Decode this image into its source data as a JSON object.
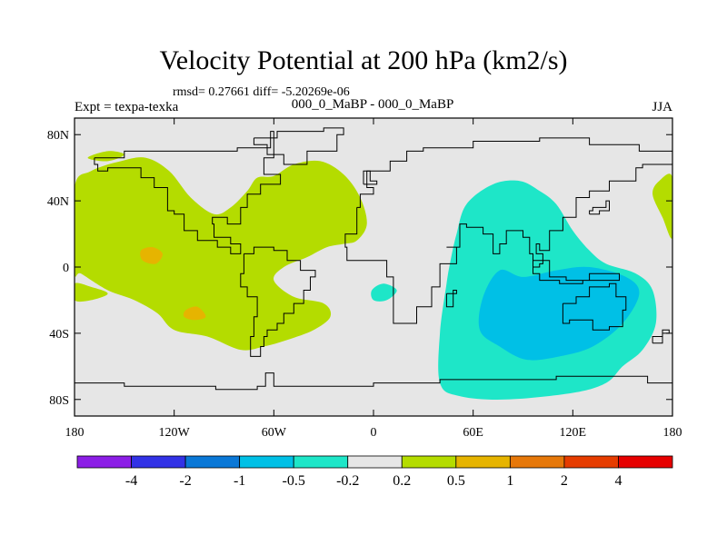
{
  "chart_data": {
    "type": "heatmap",
    "title": "Velocity Potential at 200 hPa (km2/s)",
    "stats": "rmsd= 0.27661 diff= -5.20269e-06",
    "left_label": "Expt = texpa-texka",
    "center_label": "000_0_MaBP - 000_0_MaBP",
    "season": "JJA",
    "x_range": [
      -180,
      180
    ],
    "y_range": [
      -90,
      90
    ],
    "x_ticks": [
      {
        "value": -180,
        "label": "180"
      },
      {
        "value": -120,
        "label": "120W"
      },
      {
        "value": -60,
        "label": "60W"
      },
      {
        "value": 0,
        "label": "0"
      },
      {
        "value": 60,
        "label": "60E"
      },
      {
        "value": 120,
        "label": "120E"
      },
      {
        "value": 180,
        "label": "180"
      }
    ],
    "y_ticks": [
      {
        "value": 80,
        "label": "80N"
      },
      {
        "value": 40,
        "label": "40N"
      },
      {
        "value": 0,
        "label": "0"
      },
      {
        "value": -40,
        "label": "40S"
      },
      {
        "value": -80,
        "label": "80S"
      }
    ],
    "colorbar": {
      "labels": [
        "-4",
        "-2",
        "-1",
        "-0.5",
        "-0.2",
        "0.2",
        "0.5",
        "1",
        "2",
        "4"
      ],
      "colors": [
        "#8c1ee6",
        "#3232e6",
        "#0a78d7",
        "#00c0e6",
        "#1ee6c8",
        "#e6e6e6",
        "#b4dc00",
        "#e6b400",
        "#e6780a",
        "#e63c00",
        "#e60000"
      ]
    },
    "regions": [
      {
        "name": "positive-region-west-hemisphere",
        "level": "0.2 to 0.5",
        "color": "#b4dc00",
        "lonlat": [
          [
            -180,
            48
          ],
          [
            -170,
            58
          ],
          [
            -152,
            64
          ],
          [
            -137,
            66
          ],
          [
            -123,
            58
          ],
          [
            -110,
            42
          ],
          [
            -96,
            32
          ],
          [
            -86,
            36
          ],
          [
            -76,
            46
          ],
          [
            -70,
            54
          ],
          [
            -60,
            55
          ],
          [
            -48,
            62
          ],
          [
            -32,
            64
          ],
          [
            -18,
            56
          ],
          [
            -8,
            42
          ],
          [
            -4,
            26
          ],
          [
            -10,
            16
          ],
          [
            -18,
            14
          ],
          [
            -28,
            12
          ],
          [
            -40,
            6
          ],
          [
            -54,
            0
          ],
          [
            -60,
            -8
          ],
          [
            -48,
            -18
          ],
          [
            -30,
            -22
          ],
          [
            -26,
            -30
          ],
          [
            -36,
            -38
          ],
          [
            -52,
            -44
          ],
          [
            -66,
            -48
          ],
          [
            -80,
            -50
          ],
          [
            -100,
            -42
          ],
          [
            -120,
            -38
          ],
          [
            -130,
            -28
          ],
          [
            -144,
            -20
          ],
          [
            -160,
            -14
          ],
          [
            -176,
            -4
          ],
          [
            -180,
            -2
          ]
        ]
      },
      {
        "name": "positive-region-south-pacific-lobe",
        "level": "0.2 to 0.5",
        "color": "#b4dc00",
        "lonlat": [
          [
            -180,
            -10
          ],
          [
            -170,
            -12
          ],
          [
            -160,
            -16
          ],
          [
            -170,
            -20
          ],
          [
            -180,
            -20
          ]
        ]
      },
      {
        "name": "positive-region-north-pacific-patch",
        "level": "0.2 to 0.5",
        "color": "#b4dc00",
        "lonlat": [
          [
            -172,
            66
          ],
          [
            -160,
            70
          ],
          [
            -150,
            68
          ],
          [
            -160,
            64
          ]
        ]
      },
      {
        "name": "positive-region-east-edge",
        "level": "0.2 to 0.5",
        "color": "#b4dc00",
        "lonlat": [
          [
            180,
            54
          ],
          [
            172,
            52
          ],
          [
            168,
            44
          ],
          [
            174,
            30
          ],
          [
            180,
            18
          ]
        ]
      },
      {
        "name": "moderate-positive-patch-north",
        "level": "0.5 to 1",
        "color": "#e6b400",
        "lonlat": [
          [
            -140,
            10
          ],
          [
            -133,
            12
          ],
          [
            -127,
            8
          ],
          [
            -131,
            2
          ],
          [
            -139,
            4
          ]
        ]
      },
      {
        "name": "moderate-positive-patch-south",
        "level": "0.5 to 1",
        "color": "#e6b400",
        "lonlat": [
          [
            -113,
            -26
          ],
          [
            -106,
            -24
          ],
          [
            -101,
            -30
          ],
          [
            -108,
            -32
          ],
          [
            -114,
            -30
          ]
        ]
      },
      {
        "name": "negative-region-indian-ocean",
        "level": "-0.5 to -0.2",
        "color": "#1ee6c8",
        "lonlat": [
          [
            50,
            20
          ],
          [
            56,
            38
          ],
          [
            72,
            50
          ],
          [
            88,
            52
          ],
          [
            100,
            46
          ],
          [
            110,
            38
          ],
          [
            120,
            22
          ],
          [
            130,
            10
          ],
          [
            140,
            2
          ],
          [
            158,
            -4
          ],
          [
            168,
            -14
          ],
          [
            170,
            -34
          ],
          [
            162,
            -50
          ],
          [
            150,
            -60
          ],
          [
            140,
            -70
          ],
          [
            120,
            -76
          ],
          [
            80,
            -80
          ],
          [
            52,
            -78
          ],
          [
            40,
            -70
          ],
          [
            40,
            -40
          ],
          [
            44,
            -10
          ],
          [
            46,
            2
          ]
        ]
      },
      {
        "name": "negative-region-atlantic-blob",
        "level": "-0.5 to -0.2",
        "color": "#1ee6c8",
        "lonlat": [
          [
            -1,
            -14
          ],
          [
            6,
            -10
          ],
          [
            14,
            -14
          ],
          [
            8,
            -20
          ],
          [
            0,
            -20
          ]
        ]
      },
      {
        "name": "negative-region-indian-ocean-core",
        "level": "-1 to -0.5",
        "color": "#00c0e6",
        "lonlat": [
          [
            76,
            -2
          ],
          [
            90,
            -6
          ],
          [
            110,
            -2
          ],
          [
            130,
            0
          ],
          [
            152,
            -6
          ],
          [
            160,
            -16
          ],
          [
            150,
            -34
          ],
          [
            132,
            -48
          ],
          [
            112,
            -54
          ],
          [
            92,
            -56
          ],
          [
            76,
            -48
          ],
          [
            64,
            -38
          ],
          [
            66,
            -18
          ]
        ]
      }
    ],
    "coastlines": [
      {
        "name": "antarctica-coastline",
        "lonlat": [
          [
            -180,
            -70
          ],
          [
            -150,
            -72
          ],
          [
            -120,
            -72
          ],
          [
            -95,
            -74
          ],
          [
            -70,
            -72
          ],
          [
            -65,
            -64
          ],
          [
            -60,
            -72
          ],
          [
            -30,
            -72
          ],
          [
            0,
            -70
          ],
          [
            40,
            -68
          ],
          [
            80,
            -68
          ],
          [
            110,
            -66
          ],
          [
            140,
            -66
          ],
          [
            165,
            -70
          ],
          [
            180,
            -72
          ]
        ]
      },
      {
        "name": "north-america-coastline",
        "lonlat": [
          [
            -168,
            66
          ],
          [
            -150,
            70
          ],
          [
            -128,
            70
          ],
          [
            -100,
            70
          ],
          [
            -82,
            72
          ],
          [
            -62,
            82
          ],
          [
            -60,
            66
          ],
          [
            -66,
            56
          ],
          [
            -56,
            50
          ],
          [
            -68,
            44
          ],
          [
            -76,
            36
          ],
          [
            -80,
            26
          ],
          [
            -88,
            30
          ],
          [
            -97,
            26
          ],
          [
            -96,
            18
          ],
          [
            -86,
            14
          ],
          [
            -80,
            8
          ],
          [
            -86,
            12
          ],
          [
            -94,
            16
          ],
          [
            -106,
            22
          ],
          [
            -114,
            32
          ],
          [
            -120,
            34
          ],
          [
            -124,
            40
          ],
          [
            -124,
            48
          ],
          [
            -132,
            54
          ],
          [
            -140,
            60
          ],
          [
            -150,
            60
          ],
          [
            -160,
            58
          ],
          [
            -166,
            62
          ],
          [
            -168,
            66
          ]
        ]
      },
      {
        "name": "greenland-coastline",
        "lonlat": [
          [
            -72,
            78
          ],
          [
            -58,
            82
          ],
          [
            -30,
            84
          ],
          [
            -18,
            80
          ],
          [
            -22,
            70
          ],
          [
            -40,
            62
          ],
          [
            -48,
            62
          ],
          [
            -54,
            68
          ],
          [
            -64,
            74
          ],
          [
            -72,
            78
          ]
        ]
      },
      {
        "name": "south-america-coastline",
        "lonlat": [
          [
            -78,
            8
          ],
          [
            -72,
            12
          ],
          [
            -60,
            10
          ],
          [
            -52,
            4
          ],
          [
            -44,
            -2
          ],
          [
            -35,
            -6
          ],
          [
            -38,
            -14
          ],
          [
            -42,
            -22
          ],
          [
            -48,
            -28
          ],
          [
            -54,
            -34
          ],
          [
            -58,
            -38
          ],
          [
            -64,
            -42
          ],
          [
            -66,
            -48
          ],
          [
            -68,
            -54
          ],
          [
            -74,
            -52
          ],
          [
            -74,
            -42
          ],
          [
            -72,
            -30
          ],
          [
            -70,
            -18
          ],
          [
            -76,
            -12
          ],
          [
            -80,
            -4
          ],
          [
            -78,
            8
          ]
        ]
      },
      {
        "name": "eurasia-africa-coastline",
        "lonlat": [
          [
            -10,
            36
          ],
          [
            -8,
            44
          ],
          [
            0,
            48
          ],
          [
            -4,
            58
          ],
          [
            8,
            58
          ],
          [
            10,
            64
          ],
          [
            20,
            70
          ],
          [
            30,
            72
          ],
          [
            60,
            76
          ],
          [
            80,
            76
          ],
          [
            100,
            78
          ],
          [
            130,
            74
          ],
          [
            160,
            70
          ],
          [
            180,
            70
          ],
          [
            180,
            62
          ],
          [
            162,
            60
          ],
          [
            158,
            52
          ],
          [
            142,
            52
          ],
          [
            142,
            46
          ],
          [
            130,
            42
          ],
          [
            122,
            38
          ],
          [
            122,
            30
          ],
          [
            114,
            22
          ],
          [
            106,
            10
          ],
          [
            100,
            14
          ],
          [
            98,
            8
          ],
          [
            102,
            2
          ],
          [
            100,
            0
          ],
          [
            96,
            8
          ],
          [
            94,
            18
          ],
          [
            90,
            22
          ],
          [
            80,
            14
          ],
          [
            76,
            8
          ],
          [
            72,
            20
          ],
          [
            66,
            24
          ],
          [
            56,
            26
          ],
          [
            52,
            12
          ],
          [
            44,
            12
          ],
          [
            50,
            2
          ],
          [
            40,
            -12
          ],
          [
            35,
            -24
          ],
          [
            26,
            -34
          ],
          [
            18,
            -34
          ],
          [
            12,
            -18
          ],
          [
            12,
            -6
          ],
          [
            8,
            4
          ],
          [
            -6,
            4
          ],
          [
            -16,
            12
          ],
          [
            -17,
            20
          ],
          [
            -10,
            30
          ],
          [
            -10,
            36
          ]
        ]
      },
      {
        "name": "australia-coastline",
        "lonlat": [
          [
            114,
            -22
          ],
          [
            122,
            -18
          ],
          [
            130,
            -12
          ],
          [
            136,
            -12
          ],
          [
            142,
            -10
          ],
          [
            146,
            -18
          ],
          [
            152,
            -26
          ],
          [
            150,
            -36
          ],
          [
            142,
            -38
          ],
          [
            132,
            -32
          ],
          [
            118,
            -34
          ],
          [
            114,
            -26
          ],
          [
            114,
            -22
          ]
        ]
      },
      {
        "name": "madagascar-coastline",
        "lonlat": [
          [
            44,
            -16
          ],
          [
            50,
            -14
          ],
          [
            48,
            -24
          ],
          [
            44,
            -24
          ],
          [
            44,
            -16
          ]
        ]
      },
      {
        "name": "indonesia-coastline",
        "lonlat": [
          [
            96,
            4
          ],
          [
            106,
            -6
          ],
          [
            116,
            -8
          ],
          [
            124,
            -8
          ],
          [
            130,
            -4
          ],
          [
            140,
            -4
          ],
          [
            148,
            -8
          ],
          [
            140,
            -8
          ],
          [
            126,
            -10
          ],
          [
            112,
            -8
          ],
          [
            100,
            -4
          ],
          [
            96,
            4
          ]
        ]
      },
      {
        "name": "new-zealand-coastline",
        "lonlat": [
          [
            168,
            -46
          ],
          [
            174,
            -40
          ],
          [
            178,
            -38
          ],
          [
            174,
            -42
          ],
          [
            168,
            -46
          ]
        ]
      },
      {
        "name": "uk-coastline",
        "lonlat": [
          [
            -6,
            50
          ],
          [
            2,
            52
          ],
          [
            -2,
            58
          ],
          [
            -6,
            56
          ],
          [
            -6,
            50
          ]
        ]
      },
      {
        "name": "japan-coastline",
        "lonlat": [
          [
            130,
            32
          ],
          [
            136,
            34
          ],
          [
            142,
            40
          ],
          [
            140,
            36
          ],
          [
            132,
            34
          ],
          [
            130,
            32
          ]
        ]
      }
    ]
  }
}
